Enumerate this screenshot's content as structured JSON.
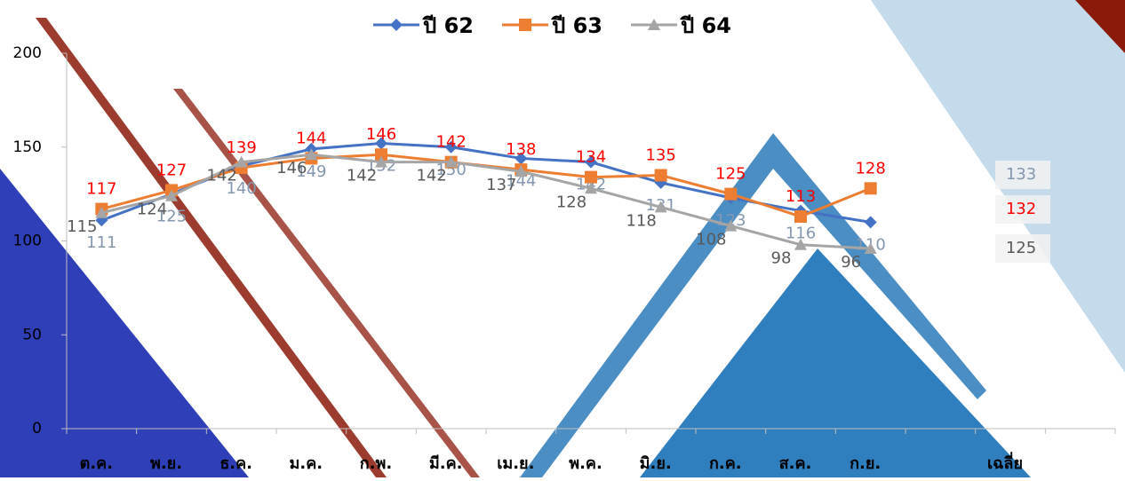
{
  "chart_data": {
    "type": "line",
    "categories": [
      "ต.ค.",
      "พ.ย.",
      "ธ.ค.",
      "ม.ค.",
      "ก.พ.",
      "มี.ค.",
      "เม.ย.",
      "พ.ค.",
      "มิ.ย.",
      "ก.ค.",
      "ส.ค.",
      "ก.ย.",
      null,
      "เฉลี่ย",
      null
    ],
    "series": [
      {
        "name": "ปี 62",
        "color": "#4472c4",
        "label_color": "#8497b0",
        "marker": "diamond",
        "values": [
          111,
          125,
          140,
          149,
          152,
          150,
          144,
          142,
          131,
          123,
          116,
          110,
          null,
          133,
          null
        ]
      },
      {
        "name": "ปี 63",
        "color": "#ed7d31",
        "label_color": "#ff0000",
        "marker": "square",
        "values": [
          117,
          127,
          139,
          144,
          146,
          142,
          138,
          134,
          135,
          125,
          113,
          128,
          null,
          132,
          null
        ]
      },
      {
        "name": "ปี 64",
        "color": "#a5a5a5",
        "label_color": "#595959",
        "marker": "triangle",
        "values": [
          115,
          124,
          142,
          146,
          142,
          142,
          137,
          128,
          118,
          108,
          98,
          96,
          null,
          125,
          null
        ]
      }
    ],
    "ylim": [
      0,
      200
    ],
    "yticks": [
      0,
      50,
      100,
      150,
      200
    ],
    "legend": "top"
  }
}
